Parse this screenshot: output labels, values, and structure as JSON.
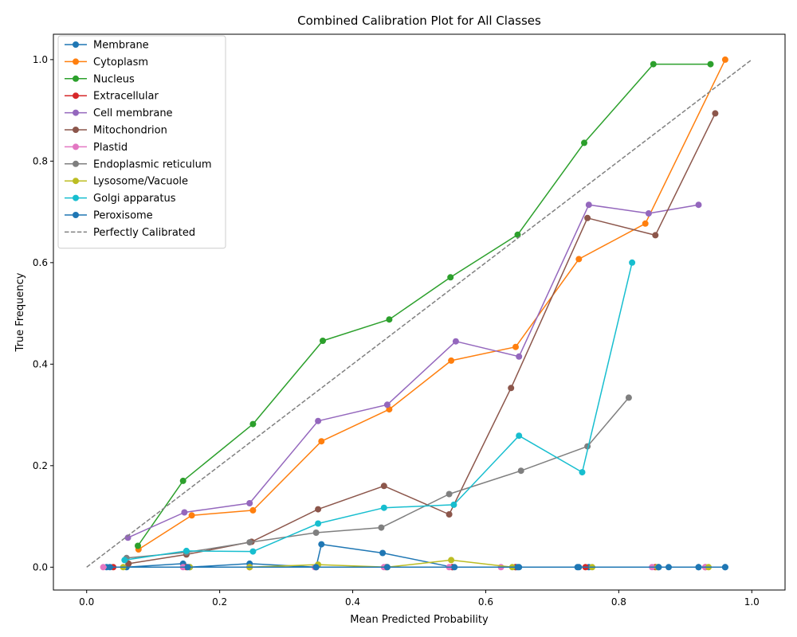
{
  "chart_data": {
    "type": "line",
    "title": "Combined Calibration Plot for All Classes",
    "xlabel": "Mean Predicted Probability",
    "ylabel": "True Frequency",
    "xlim": [
      -0.05,
      1.05
    ],
    "ylim": [
      -0.045,
      1.05
    ],
    "xticks": [
      0.0,
      0.2,
      0.4,
      0.6,
      0.8,
      1.0
    ],
    "xtick_labels": [
      "0.0",
      "0.2",
      "0.4",
      "0.6",
      "0.8",
      "1.0"
    ],
    "yticks": [
      0.0,
      0.2,
      0.4,
      0.6,
      0.8,
      1.0
    ],
    "ytick_labels": [
      "0.0",
      "0.2",
      "0.4",
      "0.6",
      "0.8",
      "1.0"
    ],
    "grid": false,
    "legend_position": "upper-left",
    "series": [
      {
        "name": "Membrane",
        "color": "#1f77b4",
        "x": [
          0.03,
          0.06,
          0.145,
          0.155,
          0.245,
          0.345,
          0.353,
          0.445,
          0.55,
          0.645,
          0.65,
          0.74,
          0.755,
          0.86,
          0.875,
          0.92,
          0.96
        ],
        "y": [
          0.0,
          0.0,
          0.007,
          0.0,
          0.007,
          0.0,
          0.045,
          0.028,
          0.0,
          0.0,
          0.0,
          0.0,
          0.0,
          0.0,
          0.0,
          0.0,
          0.0
        ]
      },
      {
        "name": "Cytoplasm",
        "color": "#ff7f0e",
        "x": [
          0.078,
          0.158,
          0.25,
          0.353,
          0.455,
          0.548,
          0.645,
          0.74,
          0.84,
          0.96
        ],
        "y": [
          0.035,
          0.102,
          0.112,
          0.248,
          0.311,
          0.407,
          0.434,
          0.607,
          0.677,
          1.0
        ]
      },
      {
        "name": "Nucleus",
        "color": "#2ca02c",
        "x": [
          0.077,
          0.145,
          0.25,
          0.355,
          0.455,
          0.547,
          0.648,
          0.748,
          0.852,
          0.938
        ],
        "y": [
          0.042,
          0.17,
          0.282,
          0.446,
          0.488,
          0.571,
          0.655,
          0.836,
          0.991,
          0.991
        ]
      },
      {
        "name": "Extracellular",
        "color": "#d62728",
        "x": [
          0.04,
          0.15,
          0.245,
          0.345,
          0.45,
          0.55,
          0.645,
          0.75,
          0.855,
          0.93
        ],
        "y": [
          0.0,
          0.0,
          0.0,
          0.0,
          0.0,
          0.0,
          0.0,
          0.0,
          0.0,
          0.0
        ]
      },
      {
        "name": "Cell membrane",
        "color": "#9467bd",
        "x": [
          0.062,
          0.147,
          0.245,
          0.348,
          0.452,
          0.555,
          0.65,
          0.755,
          0.845,
          0.92
        ],
        "y": [
          0.058,
          0.108,
          0.126,
          0.288,
          0.32,
          0.445,
          0.415,
          0.714,
          0.697,
          0.714
        ]
      },
      {
        "name": "Mitochondrion",
        "color": "#8c564b",
        "x": [
          0.063,
          0.15,
          0.248,
          0.348,
          0.447,
          0.545,
          0.638,
          0.753,
          0.855,
          0.945
        ],
        "y": [
          0.007,
          0.025,
          0.05,
          0.114,
          0.16,
          0.104,
          0.353,
          0.688,
          0.654,
          0.894
        ]
      },
      {
        "name": "Plastid",
        "color": "#e377c2",
        "x": [
          0.025,
          0.145,
          0.245,
          0.343,
          0.447,
          0.545,
          0.623,
          0.85,
          0.93
        ],
        "y": [
          0.0,
          0.0,
          0.0,
          0.0,
          0.0,
          0.0,
          0.0,
          0.0,
          0.0
        ]
      },
      {
        "name": "Endoplasmic reticulum",
        "color": "#7f7f7f",
        "x": [
          0.06,
          0.15,
          0.245,
          0.345,
          0.443,
          0.545,
          0.653,
          0.753,
          0.815
        ],
        "y": [
          0.018,
          0.029,
          0.049,
          0.068,
          0.078,
          0.144,
          0.19,
          0.238,
          0.334
        ]
      },
      {
        "name": "Lysosome/Vacuole",
        "color": "#bcbd22",
        "x": [
          0.055,
          0.155,
          0.245,
          0.348,
          0.452,
          0.548,
          0.64,
          0.76,
          0.858,
          0.935
        ],
        "y": [
          0.0,
          0.0,
          0.0,
          0.005,
          0.0,
          0.014,
          0.0,
          0.0,
          0.0,
          0.0
        ]
      },
      {
        "name": "Golgi apparatus",
        "color": "#17becf",
        "x": [
          0.057,
          0.15,
          0.25,
          0.348,
          0.447,
          0.552,
          0.65,
          0.745,
          0.82
        ],
        "y": [
          0.014,
          0.032,
          0.031,
          0.086,
          0.117,
          0.123,
          0.259,
          0.187,
          0.6
        ]
      },
      {
        "name": "Peroxisome",
        "color": "#1f77b4",
        "x": [
          0.035,
          0.152,
          0.345,
          0.452,
          0.553,
          0.648,
          0.738,
          0.86,
          0.92,
          0.96
        ],
        "y": [
          0.0,
          0.0,
          0.0,
          0.0,
          0.0,
          0.0,
          0.0,
          0.0,
          0.0,
          0.0
        ]
      }
    ],
    "reference_line": {
      "name": "Perfectly Calibrated",
      "color": "#808080",
      "x": [
        0.0,
        1.0
      ],
      "y": [
        0.0,
        1.0
      ]
    }
  }
}
